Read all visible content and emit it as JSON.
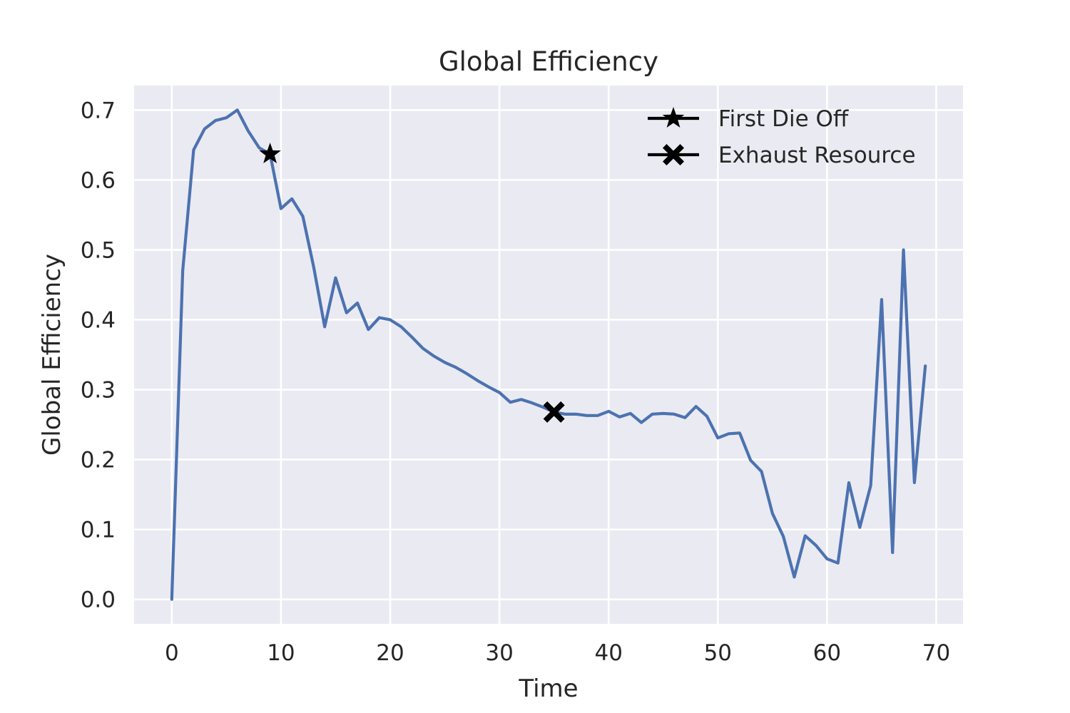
{
  "chart_data": {
    "type": "line",
    "title": "Global Efficiency",
    "xlabel": "Time",
    "ylabel": "Global Efficiency",
    "xlim": [
      -3.45,
      72.45
    ],
    "ylim": [
      -0.035,
      0.735
    ],
    "xticks": [
      0,
      10,
      20,
      30,
      40,
      50,
      60,
      70
    ],
    "xtick_labels": [
      "0",
      "10",
      "20",
      "30",
      "40",
      "50",
      "60",
      "70"
    ],
    "yticks": [
      0.0,
      0.1,
      0.2,
      0.3,
      0.4,
      0.5,
      0.6,
      0.7
    ],
    "ytick_labels": [
      "0.0",
      "0.1",
      "0.2",
      "0.3",
      "0.4",
      "0.5",
      "0.6",
      "0.7"
    ],
    "grid": true,
    "legend_position": "top-right",
    "series": [
      {
        "x": [
          0,
          1,
          2,
          3,
          4,
          5,
          6,
          7,
          8,
          9,
          10,
          11,
          12,
          13,
          14,
          15,
          16,
          17,
          18,
          19,
          20,
          21,
          22,
          23,
          24,
          25,
          26,
          27,
          28,
          29,
          30,
          31,
          32,
          33,
          34,
          35,
          36,
          37,
          38,
          39,
          40,
          41,
          42,
          43,
          44,
          45,
          46,
          47,
          48,
          49,
          50,
          51,
          52,
          53,
          54,
          55,
          56,
          57,
          58,
          59,
          60,
          61,
          62,
          63,
          64,
          65,
          66,
          67,
          68,
          69
        ],
        "y": [
          0.0,
          0.47,
          0.643,
          0.673,
          0.685,
          0.689,
          0.7,
          0.67,
          0.646,
          0.637,
          0.559,
          0.573,
          0.548,
          0.475,
          0.39,
          0.46,
          0.41,
          0.424,
          0.386,
          0.403,
          0.4,
          0.39,
          0.375,
          0.359,
          0.348,
          0.339,
          0.332,
          0.323,
          0.313,
          0.304,
          0.296,
          0.282,
          0.286,
          0.281,
          0.275,
          0.268,
          0.265,
          0.265,
          0.263,
          0.263,
          0.269,
          0.261,
          0.266,
          0.253,
          0.265,
          0.266,
          0.265,
          0.26,
          0.276,
          0.262,
          0.231,
          0.237,
          0.238,
          0.199,
          0.183,
          0.123,
          0.09,
          0.032,
          0.091,
          0.077,
          0.058,
          0.052,
          0.167,
          0.103,
          0.163,
          0.429,
          0.067,
          0.5,
          0.167,
          0.334
        ],
        "color": "#4c72b0"
      }
    ],
    "markers": [
      {
        "label": "First Die Off",
        "x": 9,
        "y": 0.637,
        "symbol": "star",
        "color": "#000000"
      },
      {
        "label": "Exhaust Resource",
        "x": 35,
        "y": 0.268,
        "symbol": "x",
        "color": "#000000"
      }
    ],
    "colors": {
      "plot_background": "#eaeaf2",
      "grid": "#ffffff"
    }
  }
}
